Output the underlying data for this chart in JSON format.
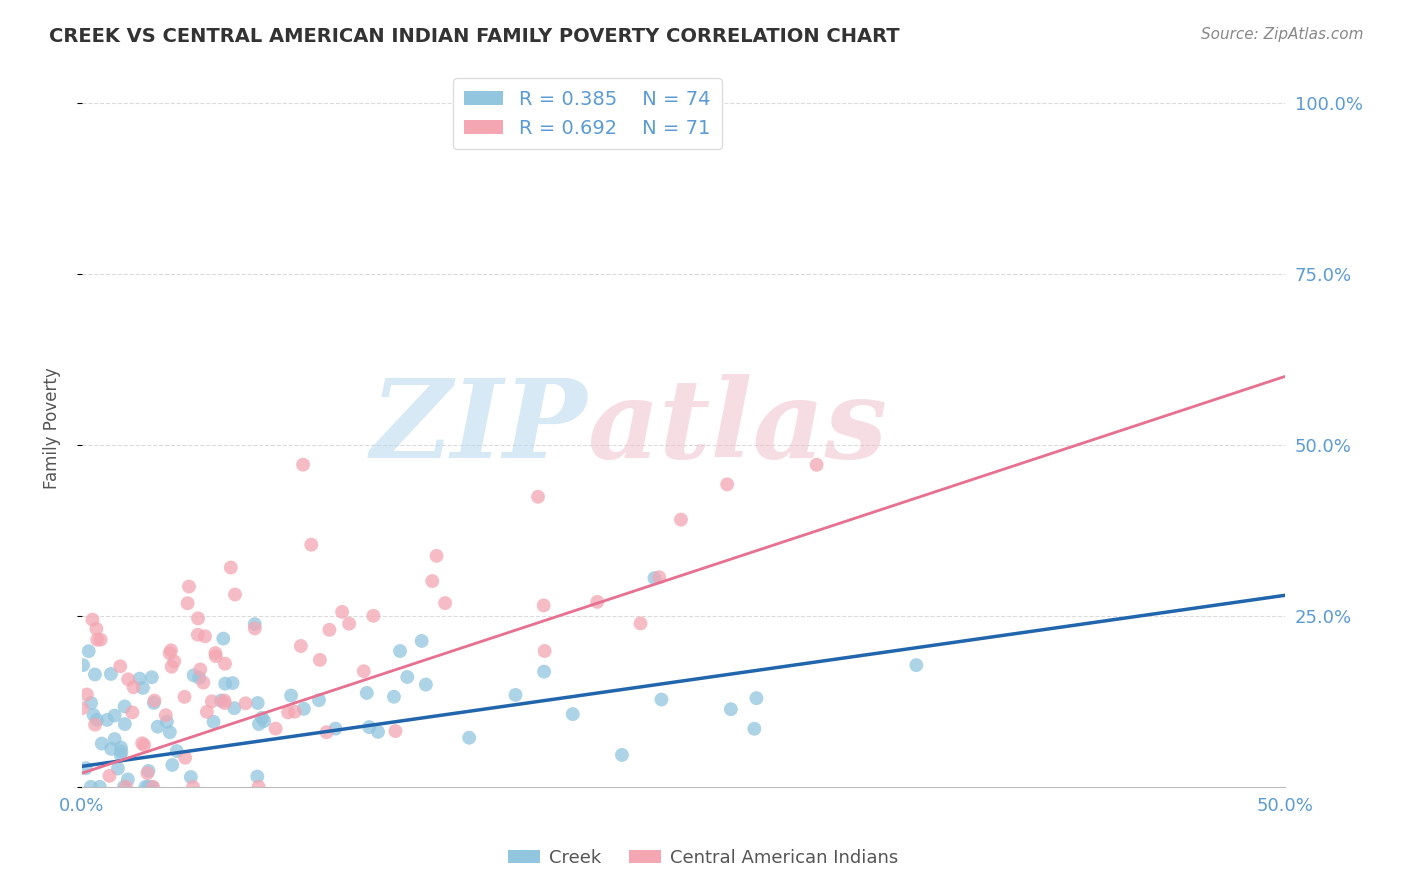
{
  "title": "CREEK VS CENTRAL AMERICAN INDIAN FAMILY POVERTY CORRELATION CHART",
  "source_text": "Source: ZipAtlas.com",
  "ylabel": "Family Poverty",
  "xlim": [
    0.0,
    0.5
  ],
  "ylim": [
    0.0,
    1.05
  ],
  "creek_R": 0.385,
  "creek_N": 74,
  "ca_indian_R": 0.692,
  "ca_indian_N": 71,
  "creek_color": "#92c5de",
  "ca_indian_color": "#f4a6b2",
  "creek_line_color": "#2166ac",
  "ca_indian_line_color": "#e87090",
  "ca_indian_dash_color": "#d4b0bb",
  "grid_color": "#cccccc",
  "background_color": "#ffffff",
  "title_color": "#333333",
  "source_color": "#888888",
  "tick_color": "#5b9bd5",
  "ylabel_color": "#555555"
}
